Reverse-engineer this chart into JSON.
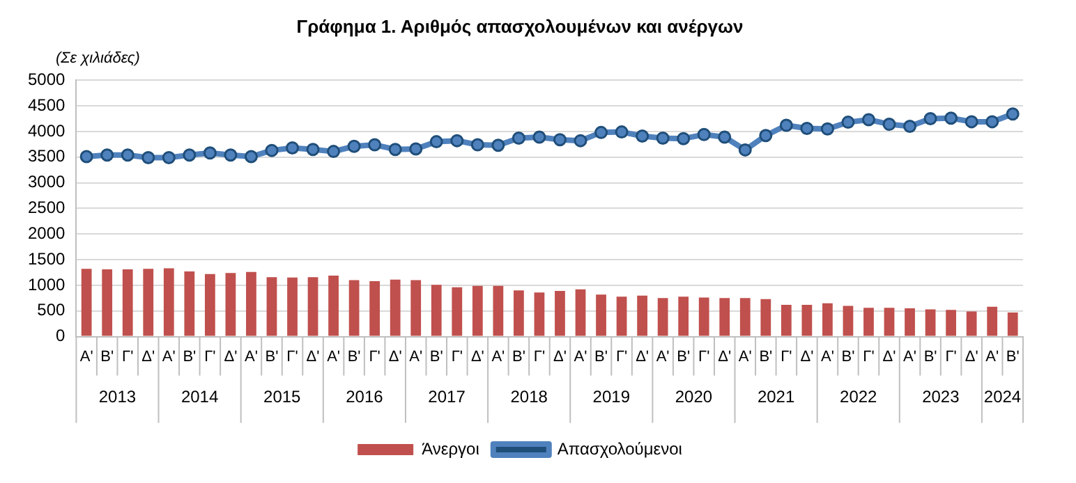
{
  "chart_data": {
    "type": "bar",
    "title": "Γράφημα 1. Αριθμός απασχολουμένων και ανέργων",
    "ylabel": "(Σε χιλιάδες)",
    "categories": [
      "Α'",
      "Β'",
      "Γ'",
      "Δ'",
      "Α'",
      "Β'",
      "Γ'",
      "Δ'",
      "Α'",
      "Β'",
      "Γ'",
      "Δ'",
      "Α'",
      "Β'",
      "Γ'",
      "Δ'",
      "Α'",
      "Β'",
      "Γ'",
      "Δ'",
      "Α'",
      "Β'",
      "Γ'",
      "Δ'",
      "Α'",
      "Β'",
      "Γ'",
      "Δ'",
      "Α'",
      "Β'",
      "Γ'",
      "Δ'",
      "Α'",
      "Β'",
      "Γ'",
      "Δ'",
      "Α'",
      "Β'",
      "Γ'",
      "Δ'",
      "Α'",
      "Β'",
      "Γ'",
      "Δ'",
      "Α'",
      "Β'"
    ],
    "annotations": [
      "2013",
      "2014",
      "2015",
      "2016",
      "2017",
      "2018",
      "2019",
      "2020",
      "2021",
      "2022",
      "2023",
      "2024"
    ],
    "series": [
      {
        "name": "Άνεργοι",
        "color": "#c0504d",
        "values": [
          1320,
          1310,
          1310,
          1320,
          1330,
          1270,
          1220,
          1240,
          1260,
          1160,
          1150,
          1160,
          1190,
          1100,
          1080,
          1110,
          1100,
          1010,
          960,
          990,
          990,
          900,
          860,
          890,
          920,
          820,
          780,
          800,
          750,
          780,
          760,
          750,
          750,
          730,
          620,
          620,
          650,
          600,
          560,
          560,
          550,
          530,
          520,
          490,
          580,
          470
        ]
      },
      {
        "name": "Απασχολούμενοι",
        "type": "line",
        "color": "#4f81bd",
        "marker": "circle",
        "values": [
          3510,
          3540,
          3540,
          3490,
          3490,
          3540,
          3580,
          3540,
          3510,
          3630,
          3680,
          3650,
          3610,
          3710,
          3740,
          3650,
          3660,
          3800,
          3820,
          3740,
          3730,
          3870,
          3890,
          3840,
          3820,
          3980,
          3990,
          3910,
          3870,
          3860,
          3940,
          3890,
          3640,
          3920,
          4120,
          4060,
          4050,
          4180,
          4230,
          4140,
          4100,
          4250,
          4260,
          4190,
          4190,
          4340
        ]
      }
    ],
    "ylim": [
      0,
      5000
    ],
    "yticks": [
      0,
      500,
      1000,
      1500,
      2000,
      2500,
      3000,
      3500,
      4000,
      4500,
      5000
    ],
    "grid": "y",
    "legend": "bottom"
  }
}
